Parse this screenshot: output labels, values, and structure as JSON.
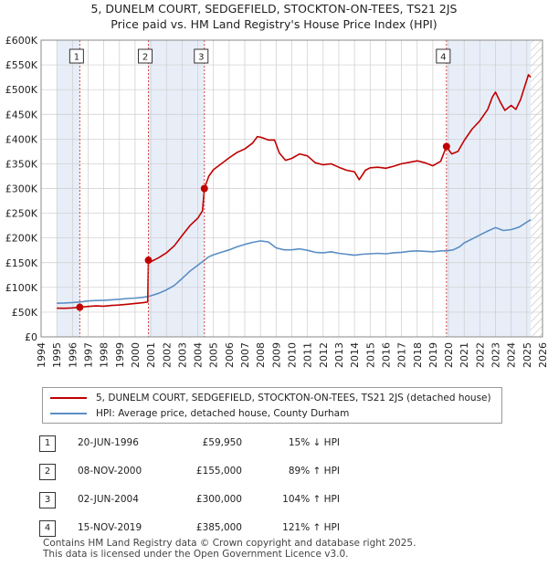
{
  "title_line1": "5, DUNELM COURT, SEDGEFIELD, STOCKTON-ON-TEES, TS21 2JS",
  "title_line2": "Price paid vs. HM Land Registry's House Price Index (HPI)",
  "colors": {
    "property": "#c00000",
    "hpi": "#5b8ec4",
    "shade": "#e8eef8",
    "grid": "#cccccc",
    "marker_line": "#d44444"
  },
  "chart_data": {
    "type": "line",
    "title": "Price paid vs. HM Land Registry's House Price Index (HPI)",
    "xlim": [
      1994,
      2026
    ],
    "ylim": [
      0,
      600000
    ],
    "x_ticks": [
      1994,
      1995,
      1996,
      1997,
      1998,
      1999,
      2000,
      2001,
      2002,
      2003,
      2004,
      2005,
      2006,
      2007,
      2008,
      2009,
      2010,
      2011,
      2012,
      2013,
      2014,
      2015,
      2016,
      2017,
      2018,
      2019,
      2020,
      2021,
      2022,
      2023,
      2024,
      2025,
      2026
    ],
    "y_ticks": [
      0,
      50000,
      100000,
      150000,
      200000,
      250000,
      300000,
      350000,
      400000,
      450000,
      500000,
      550000,
      600000
    ],
    "y_tick_labels": [
      "£0",
      "£50K",
      "£100K",
      "£150K",
      "£200K",
      "£250K",
      "£300K",
      "£350K",
      "£400K",
      "£450K",
      "£500K",
      "£550K",
      "£600K"
    ],
    "shaded_ranges": [
      [
        1995.0,
        1996.47
      ],
      [
        2000.85,
        2004.42
      ],
      [
        2019.87,
        2025.25
      ]
    ],
    "hatched_range": [
      2025.25,
      2026
    ],
    "series": [
      {
        "name": "5, DUNELM COURT, SEDGEFIELD, STOCKTON-ON-TEES, TS21 2JS (detached house)",
        "points": [
          [
            1995.0,
            58000
          ],
          [
            1995.5,
            57800
          ],
          [
            1996.0,
            58500
          ],
          [
            1996.47,
            59950
          ],
          [
            1997.0,
            61500
          ],
          [
            1997.5,
            62500
          ],
          [
            1998.0,
            62000
          ],
          [
            1998.5,
            63500
          ],
          [
            1999.0,
            64500
          ],
          [
            1999.5,
            66000
          ],
          [
            2000.0,
            67500
          ],
          [
            2000.5,
            69000
          ],
          [
            2000.8,
            70500
          ],
          [
            2000.85,
            155000
          ],
          [
            2001.0,
            152000
          ],
          [
            2001.5,
            160000
          ],
          [
            2002.0,
            170000
          ],
          [
            2002.5,
            184000
          ],
          [
            2003.0,
            205000
          ],
          [
            2003.5,
            225000
          ],
          [
            2004.0,
            240000
          ],
          [
            2004.3,
            255000
          ],
          [
            2004.42,
            300000
          ],
          [
            2004.7,
            325000
          ],
          [
            2005.0,
            338000
          ],
          [
            2005.5,
            350000
          ],
          [
            2006.0,
            362000
          ],
          [
            2006.5,
            373000
          ],
          [
            2007.0,
            380000
          ],
          [
            2007.5,
            392000
          ],
          [
            2007.8,
            405000
          ],
          [
            2008.1,
            403000
          ],
          [
            2008.5,
            398000
          ],
          [
            2008.9,
            398000
          ],
          [
            2009.2,
            372000
          ],
          [
            2009.6,
            357000
          ],
          [
            2010.0,
            361000
          ],
          [
            2010.5,
            370000
          ],
          [
            2011.0,
            366000
          ],
          [
            2011.5,
            352000
          ],
          [
            2012.0,
            348000
          ],
          [
            2012.5,
            350000
          ],
          [
            2013.0,
            343000
          ],
          [
            2013.5,
            337000
          ],
          [
            2014.0,
            334000
          ],
          [
            2014.3,
            318000
          ],
          [
            2014.7,
            337000
          ],
          [
            2015.0,
            342000
          ],
          [
            2015.5,
            343000
          ],
          [
            2016.0,
            341000
          ],
          [
            2016.5,
            345000
          ],
          [
            2017.0,
            350000
          ],
          [
            2017.5,
            353000
          ],
          [
            2018.0,
            356000
          ],
          [
            2018.5,
            352000
          ],
          [
            2019.0,
            346000
          ],
          [
            2019.5,
            355000
          ],
          [
            2019.87,
            385000
          ],
          [
            2020.2,
            370000
          ],
          [
            2020.6,
            375000
          ],
          [
            2021.0,
            397000
          ],
          [
            2021.5,
            420000
          ],
          [
            2022.0,
            437000
          ],
          [
            2022.5,
            460000
          ],
          [
            2022.8,
            485000
          ],
          [
            2023.0,
            495000
          ],
          [
            2023.3,
            475000
          ],
          [
            2023.6,
            458000
          ],
          [
            2024.0,
            468000
          ],
          [
            2024.3,
            460000
          ],
          [
            2024.6,
            480000
          ],
          [
            2024.9,
            510000
          ],
          [
            2025.1,
            530000
          ],
          [
            2025.25,
            525000
          ]
        ]
      },
      {
        "name": "HPI: Average price, detached house, County Durham",
        "points": [
          [
            1995.0,
            68000
          ],
          [
            1995.5,
            68500
          ],
          [
            1996.0,
            69500
          ],
          [
            1996.47,
            70500
          ],
          [
            1997.0,
            72500
          ],
          [
            1997.5,
            73500
          ],
          [
            1998.0,
            74000
          ],
          [
            1998.5,
            75000
          ],
          [
            1999.0,
            76000
          ],
          [
            1999.5,
            77500
          ],
          [
            2000.0,
            78500
          ],
          [
            2000.5,
            80000
          ],
          [
            2000.85,
            82000
          ],
          [
            2001.0,
            83000
          ],
          [
            2001.5,
            88000
          ],
          [
            2002.0,
            95000
          ],
          [
            2002.5,
            104000
          ],
          [
            2003.0,
            118000
          ],
          [
            2003.5,
            133000
          ],
          [
            2004.0,
            145000
          ],
          [
            2004.42,
            155000
          ],
          [
            2004.7,
            162000
          ],
          [
            2005.0,
            166000
          ],
          [
            2005.5,
            171000
          ],
          [
            2006.0,
            176000
          ],
          [
            2006.5,
            182000
          ],
          [
            2007.0,
            187000
          ],
          [
            2007.5,
            191000
          ],
          [
            2008.0,
            194000
          ],
          [
            2008.5,
            192000
          ],
          [
            2009.0,
            180000
          ],
          [
            2009.5,
            176000
          ],
          [
            2010.0,
            176000
          ],
          [
            2010.5,
            178000
          ],
          [
            2011.0,
            175000
          ],
          [
            2011.5,
            171000
          ],
          [
            2012.0,
            170000
          ],
          [
            2012.5,
            172000
          ],
          [
            2013.0,
            169000
          ],
          [
            2013.5,
            167000
          ],
          [
            2014.0,
            165000
          ],
          [
            2014.5,
            167000
          ],
          [
            2015.0,
            168000
          ],
          [
            2015.5,
            169000
          ],
          [
            2016.0,
            168000
          ],
          [
            2016.5,
            170000
          ],
          [
            2017.0,
            171000
          ],
          [
            2017.5,
            173000
          ],
          [
            2018.0,
            174000
          ],
          [
            2018.5,
            173000
          ],
          [
            2019.0,
            172000
          ],
          [
            2019.5,
            174000
          ],
          [
            2019.87,
            174000
          ],
          [
            2020.3,
            176000
          ],
          [
            2020.7,
            182000
          ],
          [
            2021.0,
            190000
          ],
          [
            2021.5,
            198000
          ],
          [
            2022.0,
            206000
          ],
          [
            2022.5,
            214000
          ],
          [
            2023.0,
            221000
          ],
          [
            2023.5,
            215000
          ],
          [
            2024.0,
            217000
          ],
          [
            2024.5,
            222000
          ],
          [
            2025.0,
            232000
          ],
          [
            2025.25,
            237000
          ]
        ]
      }
    ],
    "markers": [
      {
        "id": "1",
        "x": 1996.47,
        "price": 59950
      },
      {
        "id": "2",
        "x": 2000.85,
        "price": 155000
      },
      {
        "id": "3",
        "x": 2004.42,
        "price": 300000
      },
      {
        "id": "4",
        "x": 2019.87,
        "price": 385000
      }
    ]
  },
  "legend": {
    "property_label": "5, DUNELM COURT, SEDGEFIELD, STOCKTON-ON-TEES, TS21 2JS (detached house)",
    "hpi_label": "HPI: Average price, detached house, County Durham"
  },
  "sales": [
    {
      "num": "1",
      "date": "20-JUN-1996",
      "price": "£59,950",
      "hpi": "15% ↓ HPI"
    },
    {
      "num": "2",
      "date": "08-NOV-2000",
      "price": "£155,000",
      "hpi": "89% ↑ HPI"
    },
    {
      "num": "3",
      "date": "02-JUN-2004",
      "price": "£300,000",
      "hpi": "104% ↑ HPI"
    },
    {
      "num": "4",
      "date": "15-NOV-2019",
      "price": "£385,000",
      "hpi": "121% ↑ HPI"
    }
  ],
  "footer": {
    "line1": "Contains HM Land Registry data © Crown copyright and database right 2025.",
    "line2": "This data is licensed under the Open Government Licence v3.0."
  }
}
